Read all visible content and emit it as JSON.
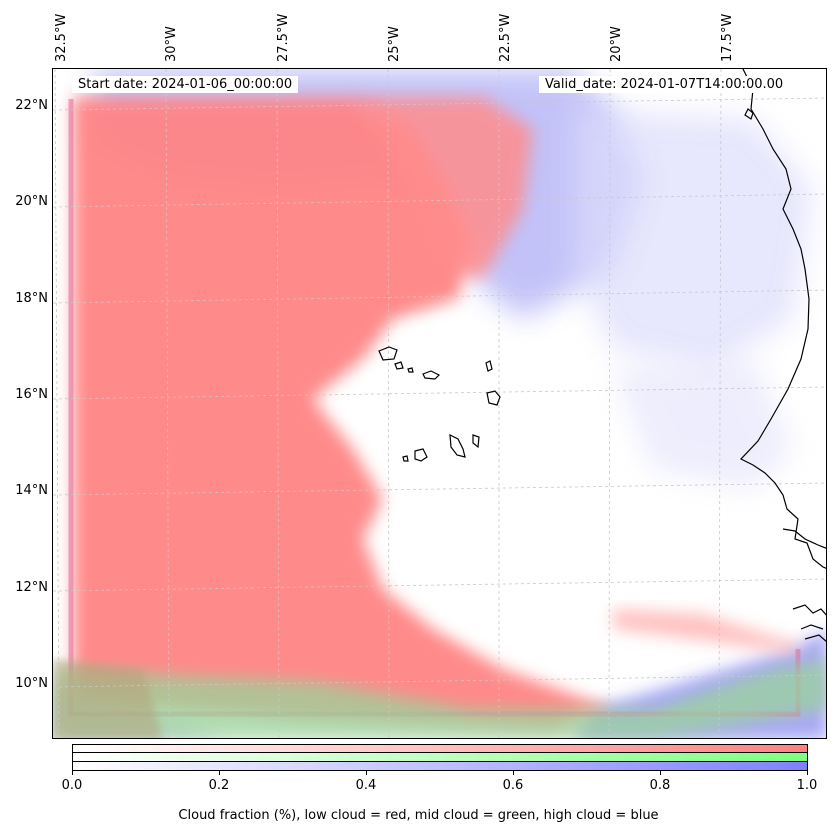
{
  "stamps": {
    "start_date": "Start date: 2024-01-06_00:00:00",
    "valid_date": "Valid_date: 2024-01-07T14:00:00.00"
  },
  "longitude_labels": [
    "32.5°W",
    "30°W",
    "27.5°W",
    "25°W",
    "22.5°W",
    "20°W",
    "17.5°W"
  ],
  "latitude_labels": [
    "22°N",
    "20°N",
    "18°N",
    "16°N",
    "14°N",
    "12°N",
    "10°N"
  ],
  "colors": {
    "low_cloud": "#ff8080",
    "mid_cloud": "#80ff80",
    "high_cloud": "#8080ff",
    "gridline": "#c8c8c8",
    "coastline": "#000000"
  },
  "colorbar": {
    "ticks": [
      "0.0",
      "0.2",
      "0.4",
      "0.6",
      "0.8",
      "1.0"
    ],
    "caption": "Cloud fraction (%), low cloud = red, mid cloud = green, high cloud = blue",
    "range": [
      0.0,
      1.0
    ]
  }
}
